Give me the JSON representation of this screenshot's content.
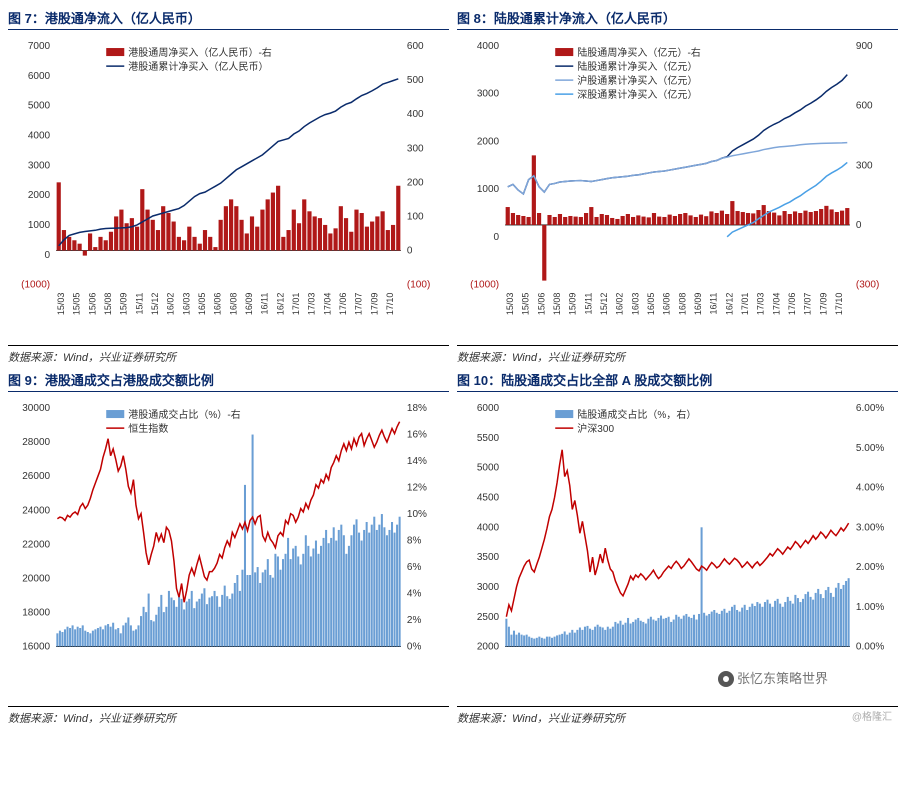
{
  "watermark1": "张忆东策略世界",
  "watermark2": "@格隆汇",
  "panels": {
    "p7": {
      "title": "图 7：港股通净流入（亿人民币）",
      "source": "数据来源：Wind，兴业证券研究所",
      "legend": {
        "bar": "港股通周净买入（亿人民币）-右",
        "line": "港股通累计净买入（亿人民币）"
      },
      "colors": {
        "bar": "#b01818",
        "line": "#0a2b6b",
        "axis": "#444",
        "neg": "#b01818"
      },
      "y_left": {
        "min": -1000,
        "max": 7000,
        "step": 1000,
        "neg_label": "(1000)"
      },
      "y_right": {
        "min": -100,
        "max": 600,
        "step": 100,
        "neg_label": "(100)"
      },
      "x_labels": [
        "15/03",
        "15/05",
        "15/06",
        "15/08",
        "15/09",
        "15/11",
        "15/12",
        "16/02",
        "16/03",
        "16/05",
        "16/06",
        "16/08",
        "16/09",
        "16/11",
        "16/12",
        "17/01",
        "17/03",
        "17/04",
        "17/06",
        "17/07",
        "17/09",
        "17/10"
      ],
      "bars": [
        200,
        60,
        40,
        30,
        20,
        -15,
        50,
        10,
        40,
        30,
        55,
        100,
        120,
        80,
        95,
        70,
        180,
        120,
        90,
        60,
        130,
        110,
        85,
        40,
        30,
        70,
        40,
        20,
        60,
        40,
        10,
        90,
        130,
        150,
        130,
        90,
        50,
        100,
        70,
        120,
        150,
        170,
        190,
        40,
        60,
        120,
        80,
        150,
        115,
        100,
        95,
        75,
        50,
        65,
        130,
        95,
        55,
        120,
        110,
        70,
        85,
        100,
        115,
        60,
        75,
        190
      ],
      "line": [
        300,
        500,
        650,
        700,
        750,
        780,
        800,
        820,
        860,
        880,
        890,
        895,
        900,
        910,
        940,
        1000,
        1100,
        1200,
        1300,
        1350,
        1400,
        1450,
        1500,
        1550,
        1650,
        1800,
        1950,
        2050,
        2100,
        2200,
        2300,
        2400,
        2550,
        2700,
        2850,
        2950,
        3050,
        3150,
        3250,
        3350,
        3500,
        3650,
        3800,
        3850,
        3900,
        4050,
        4150,
        4300,
        4420,
        4520,
        4620,
        4700,
        4750,
        4820,
        4950,
        5050,
        5110,
        5230,
        5340,
        5410,
        5500,
        5600,
        5720,
        5780,
        5840,
        5900
      ]
    },
    "p8": {
      "title": "图 8：陆股通累计净流入（亿人民币）",
      "source": "数据来源：Wind，兴业证券研究所",
      "legend": {
        "bar": "陆股通周净买入（亿元）-右",
        "l1": "陆股通累计净买入（亿元）",
        "l2": "沪股通累计净买入（亿元）",
        "l3": "深股通累计净买入（亿元）"
      },
      "colors": {
        "bar": "#b01818",
        "l1": "#0a2b6b",
        "l2": "#7fa6d9",
        "l3": "#4aa0e6",
        "axis": "#444"
      },
      "y_left": {
        "min": -1000,
        "max": 4000,
        "step": 1000,
        "neg_label": "(1000)"
      },
      "y_right": {
        "min": -300,
        "max": 900,
        "step": 300,
        "neg_label": "(300)"
      },
      "x_labels": [
        "15/03",
        "15/05",
        "15/06",
        "15/08",
        "15/09",
        "15/11",
        "15/12",
        "16/02",
        "16/03",
        "16/05",
        "16/06",
        "16/08",
        "16/09",
        "16/11",
        "16/12",
        "17/01",
        "17/03",
        "17/04",
        "17/06",
        "17/07",
        "17/09",
        "17/10"
      ],
      "bars": [
        90,
        60,
        50,
        45,
        40,
        350,
        60,
        -280,
        50,
        40,
        55,
        40,
        45,
        42,
        40,
        60,
        90,
        40,
        55,
        50,
        35,
        30,
        45,
        55,
        40,
        48,
        42,
        38,
        60,
        42,
        40,
        52,
        45,
        55,
        60,
        48,
        40,
        52,
        44,
        68,
        60,
        72,
        55,
        120,
        70,
        65,
        60,
        58,
        75,
        100,
        70,
        62,
        48,
        70,
        55,
        68,
        60,
        72,
        65,
        70,
        80,
        96,
        78,
        65,
        72,
        85
      ],
      "l1": [
        1050,
        1100,
        980,
        900,
        1200,
        1280,
        1050,
        940,
        1100,
        1120,
        1150,
        1160,
        1170,
        1175,
        1180,
        1170,
        1160,
        1180,
        1200,
        1220,
        1240,
        1250,
        1260,
        1270,
        1290,
        1300,
        1320,
        1340,
        1360,
        1370,
        1380,
        1400,
        1420,
        1440,
        1460,
        1480,
        1500,
        1520,
        1540,
        1580,
        1600,
        1650,
        1680,
        1800,
        1870,
        1930,
        1990,
        2050,
        2130,
        2230,
        2300,
        2360,
        2410,
        2480,
        2530,
        2600,
        2660,
        2740,
        2800,
        2870,
        2950,
        3050,
        3130,
        3200,
        3280,
        3400
      ],
      "l2": [
        1050,
        1100,
        980,
        900,
        1200,
        1280,
        1050,
        940,
        1100,
        1120,
        1150,
        1160,
        1170,
        1175,
        1180,
        1170,
        1160,
        1180,
        1200,
        1220,
        1240,
        1250,
        1260,
        1270,
        1290,
        1300,
        1320,
        1340,
        1360,
        1370,
        1380,
        1400,
        1420,
        1440,
        1460,
        1480,
        1500,
        1520,
        1540,
        1580,
        1600,
        1650,
        1670,
        1700,
        1720,
        1740,
        1760,
        1780,
        1800,
        1830,
        1850,
        1870,
        1885,
        1895,
        1905,
        1915,
        1930,
        1940,
        1950,
        1955,
        1960,
        1962,
        1965,
        1968,
        1970,
        1975
      ],
      "l3": [
        null,
        null,
        null,
        null,
        null,
        null,
        null,
        null,
        null,
        null,
        null,
        null,
        null,
        null,
        null,
        null,
        null,
        null,
        null,
        null,
        null,
        null,
        null,
        null,
        null,
        null,
        null,
        null,
        null,
        null,
        null,
        null,
        null,
        null,
        null,
        null,
        null,
        null,
        null,
        null,
        null,
        null,
        0,
        100,
        150,
        200,
        250,
        300,
        380,
        450,
        520,
        570,
        620,
        680,
        730,
        800,
        860,
        940,
        1010,
        1080,
        1170,
        1270,
        1340,
        1400,
        1470,
        1560
      ]
    },
    "p9": {
      "title": "图 9：港股通成交占港股成交额比例",
      "source": "数据来源：Wind，兴业证券研究所",
      "legend": {
        "bar": "港股通成交占比（%）-右",
        "line": "恒生指数"
      },
      "colors": {
        "bar": "#6a9ed4",
        "line": "#c00000",
        "axis": "#444"
      },
      "y_left": {
        "min": 16000,
        "max": 30000,
        "step": 2000
      },
      "y_right": {
        "min": 0,
        "max": 18,
        "step": 2,
        "suffix": "%"
      },
      "bars": [
        1,
        1.2,
        1.1,
        1.3,
        1.5,
        1.4,
        1.6,
        1.3,
        1.5,
        1.4,
        1.6,
        1.2,
        1.1,
        1.0,
        1.2,
        1.3,
        1.4,
        1.5,
        1.3,
        1.6,
        1.7,
        1.5,
        1.8,
        1.3,
        1.4,
        1.0,
        1.6,
        1.8,
        2.2,
        1.6,
        1.2,
        1.3,
        1.6,
        2.3,
        3.0,
        2.6,
        4.0,
        2.0,
        1.9,
        2.4,
        3.0,
        3.9,
        2.6,
        3.0,
        4.2,
        3.7,
        3.5,
        3.0,
        3.8,
        3.6,
        2.8,
        3.4,
        3.6,
        4.2,
        2.9,
        3.4,
        3.6,
        4.0,
        4.4,
        3.2,
        3.7,
        3.8,
        4.2,
        3.8,
        3.0,
        3.9,
        4.6,
        3.8,
        3.6,
        4.0,
        4.8,
        5.4,
        4.2,
        5.8,
        12.2,
        5.4,
        5.4,
        16.0,
        5.6,
        6.0,
        4.8,
        5.6,
        5.8,
        6.6,
        5.4,
        5.2,
        7.0,
        6.8,
        5.8,
        6.6,
        7.0,
        8.2,
        6.6,
        7.4,
        7.6,
        6.8,
        6.2,
        7.0,
        8.4,
        7.6,
        6.8,
        7.4,
        8.0,
        7.0,
        7.6,
        8.2,
        8.8,
        7.8,
        8.2,
        9.0,
        8.0,
        8.8,
        9.2,
        8.4,
        7.0,
        7.6,
        8.4,
        9.2,
        9.6,
        8.6,
        8.0,
        8.8,
        9.4,
        8.6,
        9.2,
        9.8,
        8.8,
        9.2,
        10.0,
        9.0,
        8.4,
        8.8,
        9.4,
        8.6,
        9.2,
        9.8
      ],
      "line": [
        23500,
        23600,
        23550,
        23400,
        23700,
        23600,
        23800,
        23900,
        23750,
        24200,
        24400,
        24100,
        24300,
        24700,
        25200,
        25600,
        26000,
        26400,
        27100,
        27600,
        28200,
        27200,
        27600,
        27000,
        26300,
        26600,
        27200,
        26400,
        25400,
        25000,
        25800,
        24300,
        23500,
        23800,
        22700,
        21500,
        20800,
        21400,
        21900,
        22700,
        22200,
        22600,
        22100,
        23000,
        22800,
        22200,
        21000,
        19400,
        18900,
        19700,
        18600,
        19300,
        20200,
        20600,
        20200,
        20800,
        21300,
        20700,
        20100,
        19900,
        20400,
        20400,
        20600,
        20900,
        21400,
        21200,
        21800,
        22200,
        21900,
        22700,
        22400,
        22800,
        23200,
        22900,
        23300,
        22800,
        23400,
        23600,
        23200,
        23600,
        23700,
        22500,
        22200,
        22700,
        22300,
        22100,
        21800,
        22500,
        22700,
        22500,
        23400,
        23200,
        23800,
        23700,
        23300,
        23600,
        24100,
        23900,
        24400,
        24100,
        24600,
        24900,
        25500,
        25300,
        25800,
        25600,
        26100,
        25800,
        26500,
        26800,
        27200,
        26900,
        27500,
        27900,
        27500,
        28000,
        27600,
        28200,
        27800,
        28300,
        28500,
        27800,
        28200,
        28500,
        28100,
        27700,
        28000,
        28400,
        28700,
        28300,
        28000,
        28400,
        28800,
        28500,
        28900,
        29200
      ]
    },
    "p10": {
      "title": "图 10：陆股通成交占比全部 A 股成交额比例",
      "source": "数据来源：Wind，兴业证券研究所",
      "legend": {
        "bar": "陆股通成交占比（%，右）",
        "line": "沪深300"
      },
      "colors": {
        "bar": "#6a9ed4",
        "line": "#c00000",
        "axis": "#444"
      },
      "y_left": {
        "min": 2000,
        "max": 6000,
        "step": 500
      },
      "y_right": {
        "min": 0,
        "max": 6,
        "step": 1,
        "suffix": ".00%"
      },
      "bars": [
        0.7,
        0.5,
        0.3,
        0.4,
        0.3,
        0.35,
        0.3,
        0.28,
        0.3,
        0.25,
        0.22,
        0.2,
        0.22,
        0.25,
        0.22,
        0.2,
        0.25,
        0.25,
        0.22,
        0.25,
        0.28,
        0.3,
        0.32,
        0.38,
        0.3,
        0.35,
        0.42,
        0.35,
        0.42,
        0.48,
        0.42,
        0.5,
        0.52,
        0.45,
        0.42,
        0.5,
        0.55,
        0.5,
        0.48,
        0.42,
        0.5,
        0.45,
        0.5,
        0.62,
        0.58,
        0.65,
        0.55,
        0.6,
        0.72,
        0.58,
        0.62,
        0.68,
        0.72,
        0.65,
        0.62,
        0.58,
        0.7,
        0.75,
        0.68,
        0.65,
        0.72,
        0.78,
        0.7,
        0.72,
        0.75,
        0.62,
        0.68,
        0.8,
        0.75,
        0.7,
        0.78,
        0.82,
        0.75,
        0.72,
        0.8,
        0.68,
        0.82,
        3.0,
        0.85,
        0.78,
        0.82,
        0.88,
        0.92,
        0.85,
        0.82,
        0.9,
        0.95,
        0.85,
        0.9,
        1.0,
        1.05,
        0.92,
        0.88,
        0.98,
        1.05,
        0.92,
        1.0,
        1.08,
        1.02,
        1.12,
        1.08,
        1.0,
        1.12,
        1.18,
        1.08,
        1.0,
        1.15,
        1.2,
        1.08,
        1.0,
        1.12,
        1.25,
        1.15,
        1.08,
        1.3,
        1.22,
        1.12,
        1.2,
        1.32,
        1.38,
        1.25,
        1.18,
        1.35,
        1.45,
        1.32,
        1.22,
        1.42,
        1.5,
        1.35,
        1.25,
        1.48,
        1.6,
        1.45,
        1.55,
        1.65,
        1.72
      ],
      "line": [
        2500,
        2700,
        2600,
        2800,
        3000,
        3150,
        3250,
        3350,
        3420,
        3450,
        3300,
        3250,
        3380,
        3500,
        3650,
        3800,
        3980,
        4180,
        4300,
        4500,
        4750,
        5050,
        5300,
        4850,
        4950,
        4700,
        4300,
        4450,
        4200,
        3900,
        4100,
        3850,
        3600,
        3250,
        3500,
        3200,
        3350,
        3550,
        3400,
        3650,
        3450,
        3300,
        3250,
        3100,
        3000,
        2900,
        2850,
        2950,
        3050,
        3180,
        3120,
        3200,
        3160,
        3220,
        3180,
        3120,
        3170,
        3220,
        3280,
        3200,
        3140,
        3180,
        3250,
        3300,
        3350,
        3310,
        3380,
        3430,
        3380,
        3310,
        3350,
        3410,
        3470,
        3420,
        3360,
        3300,
        3270,
        3350,
        3320,
        3280,
        3350,
        3410,
        3370,
        3320,
        3350,
        3410,
        3470,
        3420,
        3380,
        3430,
        3480,
        3450,
        3400,
        3330,
        3370,
        3420,
        3370,
        3320,
        3380,
        3420,
        3360,
        3400,
        3450,
        3500,
        3560,
        3520,
        3580,
        3640,
        3600,
        3550,
        3610,
        3670,
        3630,
        3690,
        3760,
        3720,
        3660,
        3720,
        3780,
        3730,
        3790,
        3860,
        3800,
        3850,
        3920,
        3880,
        3820,
        3880,
        3950,
        3900,
        3860,
        3920,
        3990,
        3940,
        4000,
        4070
      ]
    }
  }
}
